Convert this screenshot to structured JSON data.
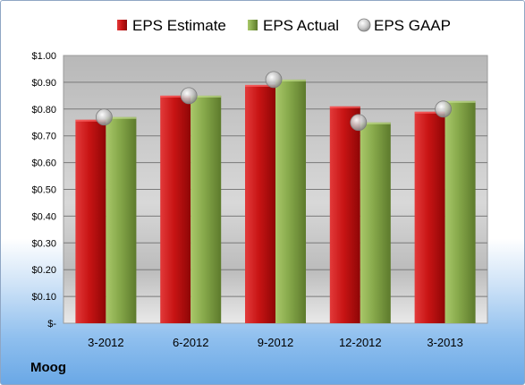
{
  "company": "Moog",
  "chart_data": {
    "type": "bar",
    "categories": [
      "3-2012",
      "6-2012",
      "9-2012",
      "12-2012",
      "3-2013"
    ],
    "series": [
      {
        "name": "EPS Estimate",
        "type": "bar",
        "color": "#cc1111",
        "values": [
          0.76,
          0.85,
          0.89,
          0.81,
          0.79
        ]
      },
      {
        "name": "EPS Actual",
        "type": "bar",
        "color": "#8cb050",
        "values": [
          0.77,
          0.85,
          0.91,
          0.75,
          0.83
        ]
      },
      {
        "name": "EPS GAAP",
        "type": "scatter",
        "color": "#c8c8c8",
        "values": [
          0.77,
          0.85,
          0.91,
          0.75,
          0.8
        ]
      }
    ],
    "yticks": [
      "$-",
      "$0.10",
      "$0.20",
      "$0.30",
      "$0.40",
      "$0.50",
      "$0.60",
      "$0.70",
      "$0.80",
      "$0.90",
      "$1.00"
    ],
    "ylim": [
      0,
      1.0
    ],
    "grid": true,
    "legend_position": "top"
  }
}
